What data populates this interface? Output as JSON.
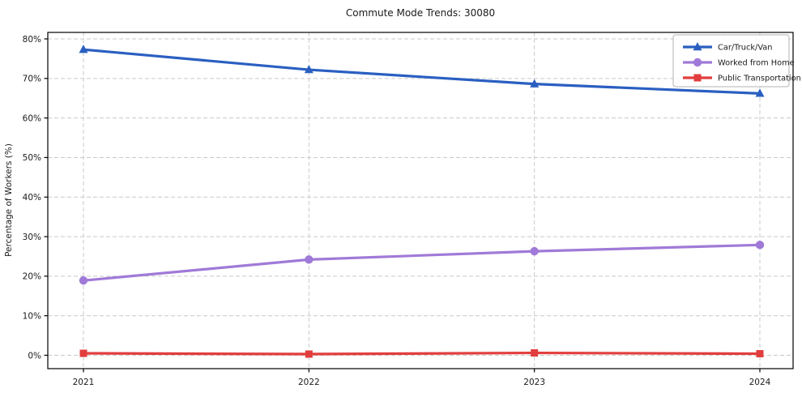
{
  "chart_data": {
    "type": "line",
    "title": "Commute Mode Trends: 30080",
    "xlabel": "",
    "ylabel": "Percentage of Workers (%)",
    "categories": [
      "2021",
      "2022",
      "2023",
      "2024"
    ],
    "series": [
      {
        "name": "Car/Truck/Van",
        "color": "#2a5fc1",
        "marker": "triangle",
        "values": [
          77.3,
          72.2,
          68.6,
          66.2
        ]
      },
      {
        "name": "Worked from Home",
        "color": "#a07ad8",
        "marker": "circle",
        "values": [
          18.9,
          24.2,
          26.3,
          27.9
        ]
      },
      {
        "name": "Public Transportation",
        "color": "#e23d3d",
        "marker": "square",
        "values": [
          0.5,
          0.3,
          0.6,
          0.4
        ]
      }
    ],
    "ylim": [
      0,
      80
    ],
    "y_tick_values": [
      0,
      10,
      20,
      30,
      40,
      50,
      60,
      70,
      80
    ],
    "y_tick_labels": [
      "0%",
      "10%",
      "20%",
      "30%",
      "40%",
      "50%",
      "60%",
      "70%",
      "80%"
    ],
    "grid": true,
    "legend_position": "upper right",
    "colors": {
      "grid": "#c9c9c9",
      "frame": "#000000",
      "text": "#1a1a1a",
      "legend_border": "#b3b3b3",
      "legend_bg": "#ffffff"
    }
  }
}
